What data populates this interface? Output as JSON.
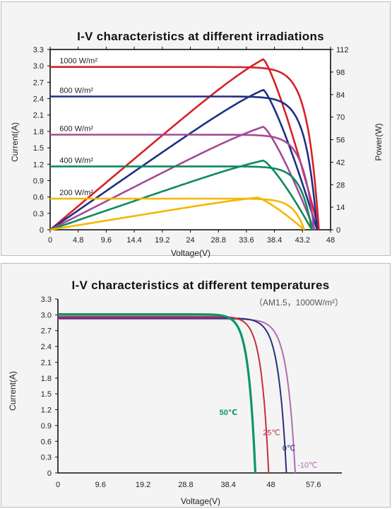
{
  "colors": {
    "red": "#d62028",
    "blue": "#1f2f86",
    "purple": "#a44a96",
    "green": "#0d8a5a",
    "yellow": "#f3b800",
    "navy": "#2b2f7a",
    "crimson": "#c4303c",
    "violet": "#b06cb0",
    "teal": "#0b9568"
  },
  "chart_data": [
    {
      "type": "line",
      "title": "I-V characteristics at different irradiations",
      "xlabel": "Voltage(V)",
      "ylabel": "Current(A)",
      "y2label": "Power(W)",
      "xlim": [
        0,
        48
      ],
      "ylim": [
        0,
        3.3
      ],
      "y2lim": [
        0,
        112
      ],
      "xticks": [
        "0",
        "4.8",
        "9.6",
        "14.4",
        "19.2",
        "24",
        "28.8",
        "33.6",
        "38.4",
        "43.2",
        "48"
      ],
      "yticks": [
        "0",
        "0.3",
        "0.6",
        "0.9",
        "1.2",
        "1.5",
        "1.8",
        "2.1",
        "2.4",
        "2.7",
        "3.0",
        "3.3"
      ],
      "y2ticks": [
        "0",
        "14",
        "28",
        "42",
        "56",
        "70",
        "84",
        "98",
        "112"
      ],
      "series": [
        {
          "name": "1000 W/m²",
          "color": "red",
          "isc": 2.98,
          "vmp": 36.5,
          "voc": 46.0,
          "pmax": 106
        },
        {
          "name": "800 W/m²",
          "color": "blue",
          "isc": 2.44,
          "vmp": 36.5,
          "voc": 45.7,
          "pmax": 87
        },
        {
          "name": "600 W/m²",
          "color": "purple",
          "isc": 1.74,
          "vmp": 36.5,
          "voc": 45.2,
          "pmax": 64
        },
        {
          "name": "400 W/m²",
          "color": "green",
          "isc": 1.16,
          "vmp": 36.5,
          "voc": 44.8,
          "pmax": 43
        },
        {
          "name": "200 W/m²",
          "color": "yellow",
          "isc": 0.57,
          "vmp": 35.5,
          "voc": 43.5,
          "pmax": 20
        }
      ]
    },
    {
      "type": "line",
      "title": "I-V characteristics at different temperatures",
      "subtitle": "（AM1.5，1000W/m²）",
      "xlabel": "Voltage(V)",
      "ylabel": "Current(A)",
      "xlim": [
        0,
        64
      ],
      "ylim": [
        0,
        3.3
      ],
      "xticks": [
        "0",
        "9.6",
        "19.2",
        "28.8",
        "38.4",
        "48",
        "57.6"
      ],
      "yticks": [
        "0",
        "0.3",
        "0.6",
        "0.9",
        "1.2",
        "1.5",
        "1.8",
        "2.1",
        "2.4",
        "2.7",
        "3.0",
        "3.3"
      ],
      "series": [
        {
          "name": "-10℃",
          "color": "violet",
          "isc": 2.92,
          "voc": 53.5
        },
        {
          "name": "0℃",
          "color": "navy",
          "isc": 2.94,
          "voc": 51.5
        },
        {
          "name": "25℃",
          "color": "crimson",
          "isc": 2.97,
          "voc": 47.5
        },
        {
          "name": "50℃",
          "color": "teal",
          "isc": 3.01,
          "voc": 44.5
        }
      ]
    }
  ]
}
